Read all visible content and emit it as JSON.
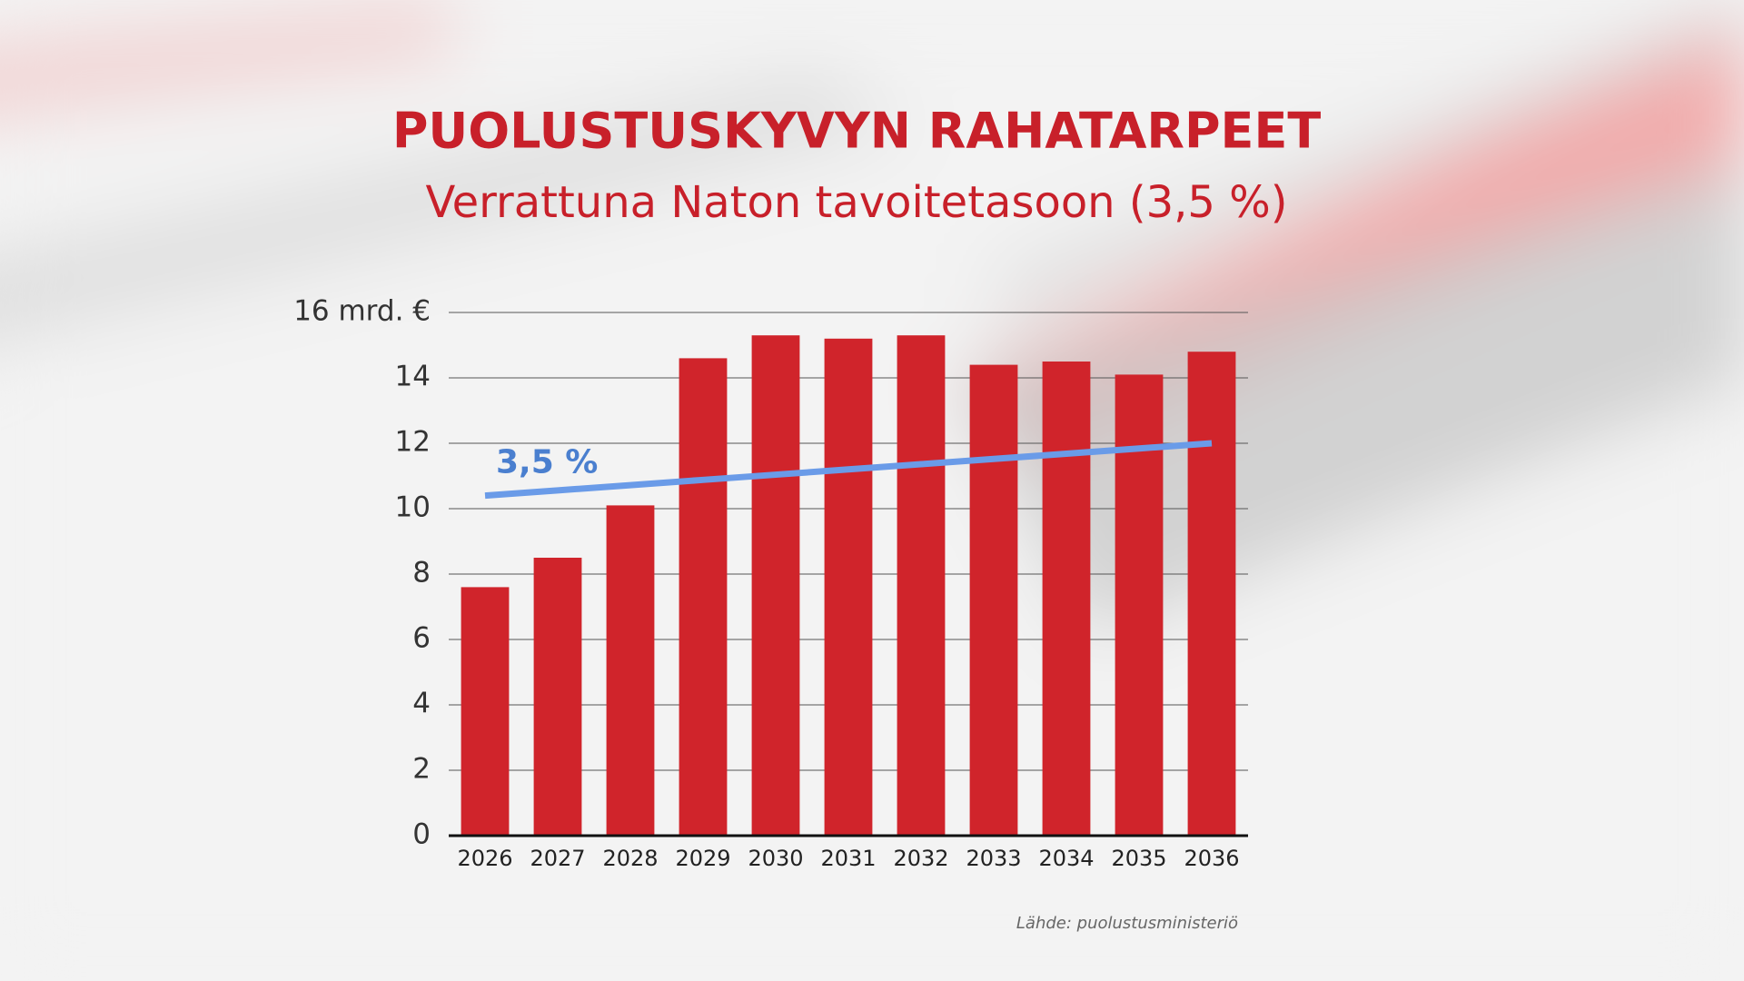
{
  "chart_data": {
    "type": "bar",
    "title": "PUOLUSTUSKYVYN RAHATARPEET",
    "subtitle": "Verrattuna Naton tavoitetasoon (3,5 %)",
    "categories": [
      "2026",
      "2027",
      "2028",
      "2029",
      "2030",
      "2031",
      "2032",
      "2033",
      "2034",
      "2035",
      "2036"
    ],
    "values": [
      7.6,
      8.5,
      10.1,
      14.6,
      15.3,
      15.2,
      15.3,
      14.4,
      14.5,
      14.1,
      14.8
    ],
    "color": "#d0242b",
    "line": {
      "name": "3,5 %",
      "color": "#6a9be8",
      "label_color": "#4a7fcf",
      "values": [
        10.4,
        10.56,
        10.72,
        10.88,
        11.04,
        11.2,
        11.36,
        11.52,
        11.68,
        11.84,
        12.0
      ]
    },
    "ylim": [
      0,
      16
    ],
    "yticks": [
      0,
      2,
      4,
      6,
      8,
      10,
      12,
      14,
      {
        "value": 16,
        "label": "16 mrd. €"
      }
    ],
    "grid": true,
    "source": "Lähde: puolustusministeriö"
  }
}
